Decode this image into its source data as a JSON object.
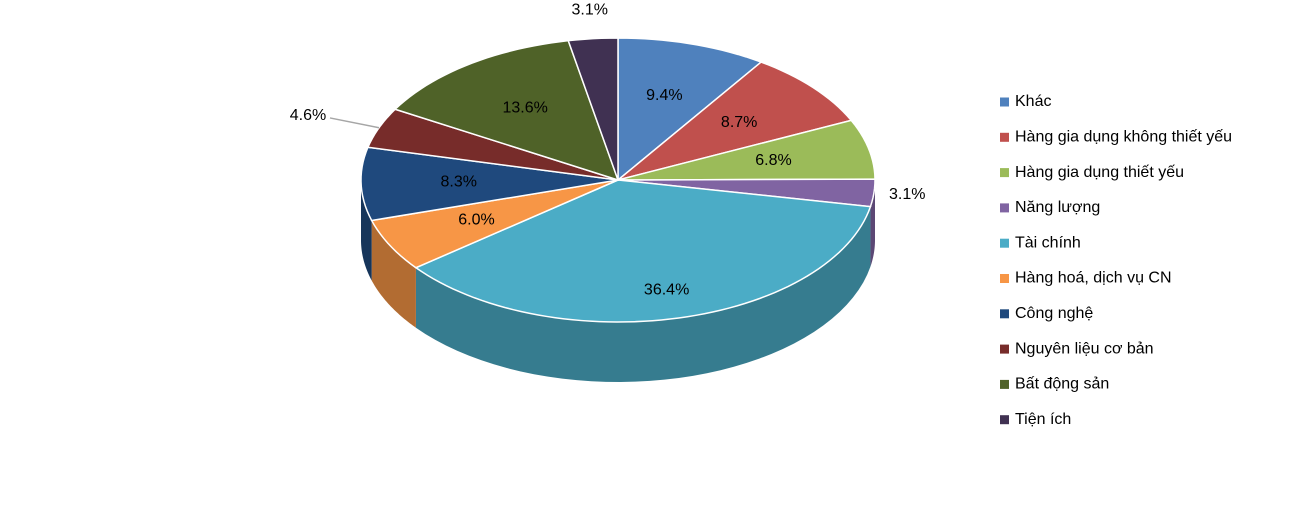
{
  "chart_data": {
    "type": "pie",
    "categories": [
      "Khác",
      "Hàng gia dụng không thiết yếu",
      "Hàng gia dụng thiết yếu",
      "Năng lượng",
      "Tài chính",
      "Hàng hoá, dịch vụ CN",
      "Công nghệ",
      "Nguyên liệu cơ bản",
      "Bất động sản",
      "Tiện ích"
    ],
    "values": [
      9.4,
      8.7,
      6.8,
      3.1,
      36.4,
      6.0,
      8.3,
      4.6,
      13.6,
      3.1
    ],
    "value_labels": [
      "9.4%",
      "8.7%",
      "6.8%",
      "3.1%",
      "36.4%",
      "6.0%",
      "8.3%",
      "4.6%",
      "13.6%",
      "3.1%"
    ],
    "colors": [
      "#4f81bd",
      "#c0504d",
      "#9bbb59",
      "#8064a2",
      "#4bacc6",
      "#f79646",
      "#1f497d",
      "#772c2a",
      "#4f6228",
      "#403152"
    ],
    "legend": "right"
  }
}
